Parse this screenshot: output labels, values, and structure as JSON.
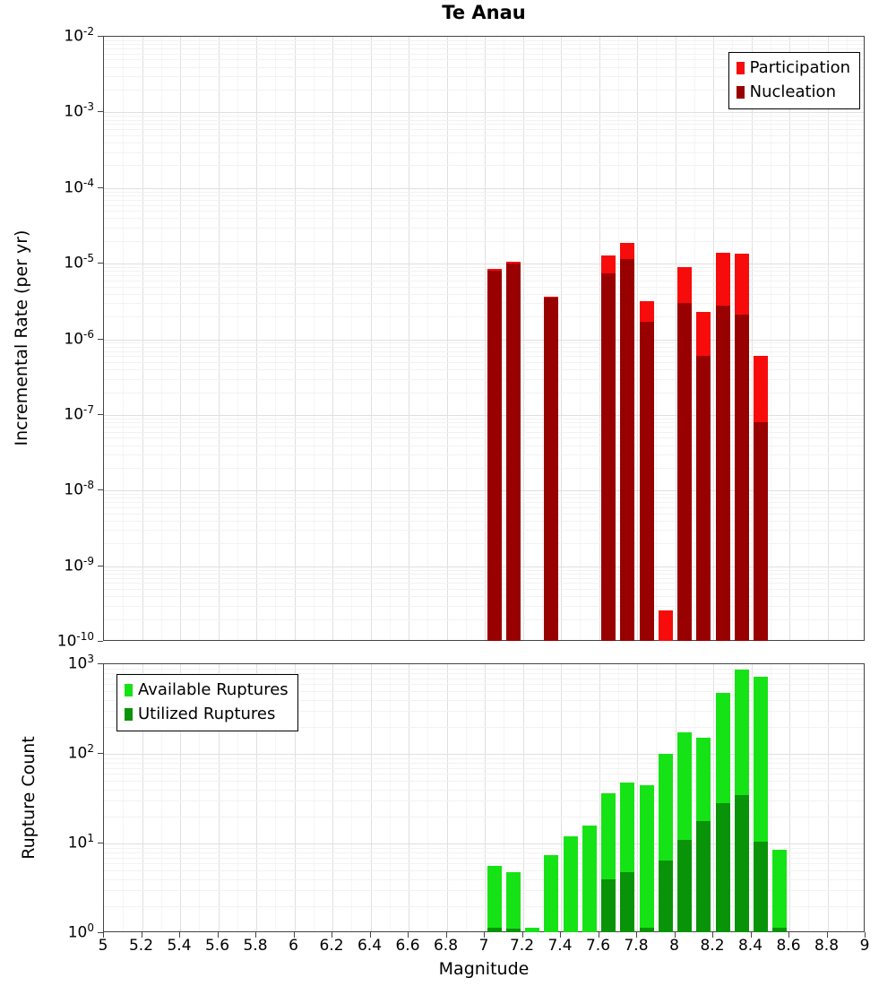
{
  "title": "Te Anau",
  "xlabel": "Magnitude",
  "x_ticks": [
    "5",
    "5.2",
    "5.4",
    "5.6",
    "5.8",
    "6",
    "6.2",
    "6.4",
    "6.6",
    "6.8",
    "7",
    "7.2",
    "7.4",
    "7.6",
    "7.8",
    "8",
    "8.2",
    "8.4",
    "8.6",
    "8.8",
    "9"
  ],
  "chart_data": [
    {
      "type": "bar",
      "title": "Te Anau",
      "xlabel": "Magnitude",
      "ylabel": "Incremental Rate (per yr)",
      "x_range": [
        5,
        9
      ],
      "y_log_range_exponents": [
        -10,
        -2
      ],
      "grid": true,
      "legend_position": "top-right",
      "legend": [
        {
          "label": "Participation",
          "color": "#f80b0b"
        },
        {
          "label": "Nucleation",
          "color": "#990000"
        }
      ],
      "bins": [
        {
          "mag": 7.05,
          "participation": 8.5e-06,
          "nucleation": 8e-06
        },
        {
          "mag": 7.15,
          "participation": 1.05e-05,
          "nucleation": 1e-05
        },
        {
          "mag": 7.35,
          "participation": 3.7e-06,
          "nucleation": 3.6e-06
        },
        {
          "mag": 7.65,
          "participation": 1.3e-05,
          "nucleation": 7.5e-06
        },
        {
          "mag": 7.75,
          "participation": 1.9e-05,
          "nucleation": 1.15e-05
        },
        {
          "mag": 7.85,
          "participation": 3.2e-06,
          "nucleation": 1.7e-06
        },
        {
          "mag": 7.95,
          "participation": 2.6e-10,
          "nucleation": null
        },
        {
          "mag": 8.05,
          "participation": 9e-06,
          "nucleation": 3e-06
        },
        {
          "mag": 8.15,
          "participation": 2.3e-06,
          "nucleation": 6e-07
        },
        {
          "mag": 8.25,
          "participation": 1.4e-05,
          "nucleation": 2.8e-06
        },
        {
          "mag": 8.35,
          "participation": 1.35e-05,
          "nucleation": 2.1e-06
        },
        {
          "mag": 8.45,
          "participation": 6e-07,
          "nucleation": 8e-08
        }
      ]
    },
    {
      "type": "bar",
      "ylabel": "Rupture Count",
      "x_range": [
        5,
        9
      ],
      "y_log_range_exponents": [
        0,
        3
      ],
      "grid": true,
      "legend_position": "top-left",
      "legend": [
        {
          "label": "Available Ruptures",
          "color": "#16e316"
        },
        {
          "label": "Utilized Ruptures",
          "color": "#089308"
        }
      ],
      "bins": [
        {
          "mag": 7.05,
          "available": 5.6,
          "utilized": 1.15
        },
        {
          "mag": 7.15,
          "available": 4.8,
          "utilized": 1.12
        },
        {
          "mag": 7.25,
          "available": 1.15,
          "utilized": null
        },
        {
          "mag": 7.35,
          "available": 7.5,
          "utilized": null
        },
        {
          "mag": 7.45,
          "available": 12,
          "utilized": null
        },
        {
          "mag": 7.55,
          "available": 16,
          "utilized": null
        },
        {
          "mag": 7.65,
          "available": 36,
          "utilized": 4.0
        },
        {
          "mag": 7.75,
          "available": 48,
          "utilized": 4.8
        },
        {
          "mag": 7.85,
          "available": 45,
          "utilized": 1.15
        },
        {
          "mag": 7.95,
          "available": 100,
          "utilized": 6.5
        },
        {
          "mag": 8.05,
          "available": 175,
          "utilized": 11
        },
        {
          "mag": 8.15,
          "available": 150,
          "utilized": 18
        },
        {
          "mag": 8.25,
          "available": 480,
          "utilized": 28
        },
        {
          "mag": 8.35,
          "available": 880,
          "utilized": 35
        },
        {
          "mag": 8.45,
          "available": 720,
          "utilized": 10.5
        },
        {
          "mag": 8.55,
          "available": 8.5,
          "utilized": 1.15
        }
      ]
    }
  ]
}
